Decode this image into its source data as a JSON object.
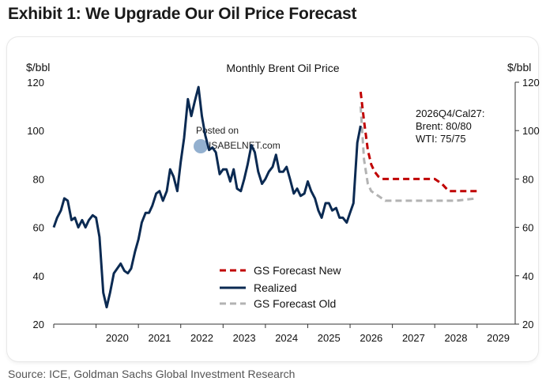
{
  "exhibit_title": "Exhibit 1: We Upgrade Our Oil Price Forecast",
  "source": "Source: ICE, Goldman Sachs Global Investment Research",
  "watermark": {
    "line1": "Posted on",
    "line2": "ISABELNET.com"
  },
  "chart_data": {
    "type": "line",
    "title": "Monthly Brent Oil Price",
    "ylabel_left": "$/bbl",
    "ylabel_right": "$/bbl",
    "ylim": [
      20,
      120
    ],
    "yticks": [
      20,
      40,
      60,
      80,
      100,
      120
    ],
    "xlim": [
      2019.0,
      2029.9
    ],
    "xticks": [
      2020,
      2021,
      2022,
      2023,
      2024,
      2025,
      2026,
      2027,
      2028,
      2029
    ],
    "annotation": [
      "2026Q4/Cal27:",
      "Brent: 80/80",
      "WTI: 75/75"
    ],
    "legend": [
      {
        "label": "GS Forecast New",
        "color": "#c00000",
        "style": "dashed"
      },
      {
        "label": "Realized",
        "color": "#0b2a52",
        "style": "solid"
      },
      {
        "label": "GS Forecast Old",
        "color": "#b3b3b3",
        "style": "dashed"
      }
    ],
    "series": [
      {
        "name": "Realized",
        "color": "#0b2a52",
        "style": "solid",
        "points": [
          [
            2019.0,
            60
          ],
          [
            2019.08,
            64
          ],
          [
            2019.17,
            67
          ],
          [
            2019.25,
            72
          ],
          [
            2019.33,
            71
          ],
          [
            2019.42,
            63
          ],
          [
            2019.5,
            64
          ],
          [
            2019.58,
            60
          ],
          [
            2019.67,
            63
          ],
          [
            2019.75,
            60
          ],
          [
            2019.83,
            63
          ],
          [
            2019.92,
            65
          ],
          [
            2020.0,
            64
          ],
          [
            2020.08,
            56
          ],
          [
            2020.17,
            33
          ],
          [
            2020.25,
            27
          ],
          [
            2020.33,
            33
          ],
          [
            2020.42,
            41
          ],
          [
            2020.5,
            43
          ],
          [
            2020.58,
            45
          ],
          [
            2020.67,
            42
          ],
          [
            2020.75,
            41
          ],
          [
            2020.83,
            43
          ],
          [
            2020.92,
            50
          ],
          [
            2021.0,
            55
          ],
          [
            2021.08,
            62
          ],
          [
            2021.17,
            66
          ],
          [
            2021.25,
            66
          ],
          [
            2021.33,
            69
          ],
          [
            2021.42,
            74
          ],
          [
            2021.5,
            75
          ],
          [
            2021.58,
            71
          ],
          [
            2021.67,
            75
          ],
          [
            2021.75,
            84
          ],
          [
            2021.83,
            81
          ],
          [
            2021.92,
            75
          ],
          [
            2022.0,
            87
          ],
          [
            2022.08,
            97
          ],
          [
            2022.17,
            113
          ],
          [
            2022.25,
            106
          ],
          [
            2022.33,
            112
          ],
          [
            2022.42,
            118
          ],
          [
            2022.5,
            106
          ],
          [
            2022.58,
            98
          ],
          [
            2022.67,
            92
          ],
          [
            2022.75,
            93
          ],
          [
            2022.83,
            91
          ],
          [
            2022.92,
            82
          ],
          [
            2023.0,
            84
          ],
          [
            2023.08,
            84
          ],
          [
            2023.17,
            79
          ],
          [
            2023.25,
            84
          ],
          [
            2023.33,
            76
          ],
          [
            2023.42,
            75
          ],
          [
            2023.5,
            80
          ],
          [
            2023.58,
            86
          ],
          [
            2023.67,
            94
          ],
          [
            2023.75,
            91
          ],
          [
            2023.83,
            83
          ],
          [
            2023.92,
            78
          ],
          [
            2024.0,
            80
          ],
          [
            2024.08,
            83
          ],
          [
            2024.17,
            85
          ],
          [
            2024.25,
            90
          ],
          [
            2024.33,
            83
          ],
          [
            2024.42,
            83
          ],
          [
            2024.5,
            85
          ],
          [
            2024.58,
            80
          ],
          [
            2024.67,
            74
          ],
          [
            2024.75,
            76
          ],
          [
            2024.83,
            73
          ],
          [
            2024.92,
            74
          ],
          [
            2025.0,
            79
          ],
          [
            2025.08,
            75
          ],
          [
            2025.17,
            72
          ],
          [
            2025.25,
            67
          ],
          [
            2025.33,
            64
          ],
          [
            2025.42,
            70
          ],
          [
            2025.5,
            70
          ],
          [
            2025.58,
            67
          ],
          [
            2025.67,
            68
          ],
          [
            2025.75,
            64
          ],
          [
            2025.83,
            64
          ],
          [
            2025.92,
            62
          ],
          [
            2026.0,
            66
          ],
          [
            2026.08,
            70
          ],
          [
            2026.17,
            95
          ],
          [
            2026.25,
            102
          ]
        ]
      },
      {
        "name": "GS Forecast New",
        "color": "#c00000",
        "style": "dashed",
        "points": [
          [
            2026.25,
            116
          ],
          [
            2026.33,
            104
          ],
          [
            2026.42,
            92
          ],
          [
            2026.5,
            86
          ],
          [
            2026.58,
            83
          ],
          [
            2026.67,
            81
          ],
          [
            2026.75,
            80
          ],
          [
            2027.0,
            80
          ],
          [
            2027.5,
            80
          ],
          [
            2028.0,
            80
          ],
          [
            2028.17,
            78
          ],
          [
            2028.33,
            75
          ],
          [
            2028.5,
            75
          ],
          [
            2029.0,
            75
          ]
        ]
      },
      {
        "name": "GS Forecast Old",
        "color": "#b3b3b3",
        "style": "dashed",
        "points": [
          [
            2026.25,
            110
          ],
          [
            2026.33,
            88
          ],
          [
            2026.42,
            78
          ],
          [
            2026.5,
            75
          ],
          [
            2026.58,
            74
          ],
          [
            2026.67,
            73
          ],
          [
            2026.75,
            72
          ],
          [
            2026.83,
            71
          ],
          [
            2027.0,
            71
          ],
          [
            2027.5,
            71
          ],
          [
            2028.0,
            71
          ],
          [
            2028.5,
            71
          ],
          [
            2029.0,
            72
          ]
        ]
      }
    ]
  }
}
